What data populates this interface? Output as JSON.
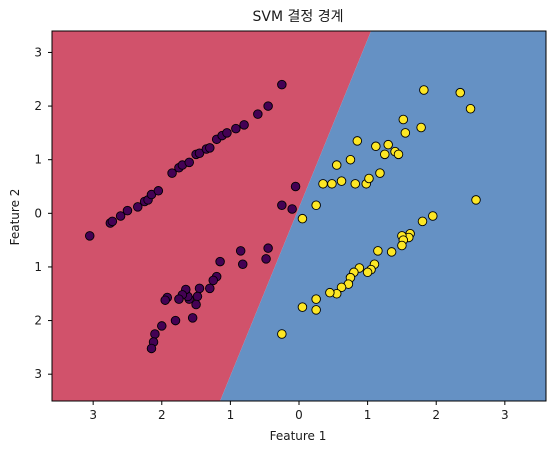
{
  "chart_data": {
    "type": "scatter",
    "title": "SVM 결정 경계",
    "xlabel": "Feature 1",
    "ylabel": "Feature 2",
    "xlim": [
      -3.6,
      3.6
    ],
    "ylim": [
      -3.5,
      3.4
    ],
    "x_ticks": [
      -3,
      -2,
      -1,
      0,
      1,
      2,
      3
    ],
    "y_ticks": [
      -3,
      -2,
      -1,
      0,
      1,
      2,
      3
    ],
    "x_tick_labels": [
      "3",
      "2",
      "1",
      "0",
      "1",
      "2",
      "3"
    ],
    "y_tick_labels": [
      "3",
      "2",
      "1",
      "0",
      "1",
      "2",
      "3"
    ],
    "grid": false,
    "regions": {
      "boundary_top_x": 1.05,
      "boundary_bottom_x": -1.15,
      "left_color": "#d1526b",
      "right_color": "#6591c4"
    },
    "series": [
      {
        "color": "#440154",
        "points": [
          [
            -3.05,
            -0.42
          ],
          [
            -2.75,
            -0.18
          ],
          [
            -2.72,
            -0.15
          ],
          [
            -2.6,
            -0.05
          ],
          [
            -2.5,
            0.05
          ],
          [
            -2.35,
            0.12
          ],
          [
            -2.25,
            0.22
          ],
          [
            -2.2,
            0.25
          ],
          [
            -2.15,
            0.35
          ],
          [
            -2.05,
            0.42
          ],
          [
            -1.85,
            0.75
          ],
          [
            -1.75,
            0.85
          ],
          [
            -1.7,
            0.9
          ],
          [
            -1.6,
            0.95
          ],
          [
            -1.5,
            1.1
          ],
          [
            -1.45,
            1.12
          ],
          [
            -1.35,
            1.2
          ],
          [
            -1.3,
            1.22
          ],
          [
            -1.2,
            1.38
          ],
          [
            -1.12,
            1.45
          ],
          [
            -1.05,
            1.5
          ],
          [
            -0.92,
            1.58
          ],
          [
            -0.8,
            1.65
          ],
          [
            -0.6,
            1.85
          ],
          [
            -0.45,
            2.0
          ],
          [
            -0.25,
            2.4
          ],
          [
            -0.05,
            0.5
          ],
          [
            -0.1,
            0.08
          ],
          [
            -0.25,
            0.15
          ],
          [
            -0.45,
            -0.65
          ],
          [
            -0.48,
            -0.85
          ],
          [
            -0.82,
            -0.95
          ],
          [
            -0.85,
            -0.7
          ],
          [
            -1.15,
            -0.9
          ],
          [
            -1.2,
            -1.18
          ],
          [
            -1.25,
            -1.25
          ],
          [
            -1.3,
            -1.4
          ],
          [
            -1.45,
            -1.4
          ],
          [
            -1.48,
            -1.55
          ],
          [
            -1.5,
            -1.7
          ],
          [
            -1.55,
            -1.95
          ],
          [
            -1.6,
            -1.6
          ],
          [
            -1.62,
            -1.55
          ],
          [
            -1.65,
            -1.42
          ],
          [
            -1.7,
            -1.52
          ],
          [
            -1.75,
            -1.6
          ],
          [
            -1.92,
            -1.57
          ],
          [
            -1.95,
            -1.62
          ],
          [
            -1.8,
            -2.0
          ],
          [
            -2.0,
            -2.1
          ],
          [
            -2.1,
            -2.25
          ],
          [
            -2.12,
            -2.4
          ],
          [
            -2.15,
            -2.52
          ]
        ]
      },
      {
        "color": "#fde725",
        "points": [
          [
            0.62,
            0.6
          ],
          [
            0.35,
            0.55
          ],
          [
            0.48,
            0.55
          ],
          [
            0.55,
            0.9
          ],
          [
            0.75,
            1.0
          ],
          [
            0.82,
            0.55
          ],
          [
            0.85,
            1.35
          ],
          [
            0.98,
            0.55
          ],
          [
            1.02,
            0.65
          ],
          [
            1.12,
            1.25
          ],
          [
            1.18,
            0.75
          ],
          [
            1.25,
            1.1
          ],
          [
            1.3,
            1.28
          ],
          [
            1.4,
            1.15
          ],
          [
            1.45,
            1.1
          ],
          [
            1.52,
            1.75
          ],
          [
            1.55,
            1.5
          ],
          [
            1.78,
            1.6
          ],
          [
            1.82,
            2.3
          ],
          [
            2.35,
            2.25
          ],
          [
            2.5,
            1.95
          ],
          [
            2.58,
            0.25
          ],
          [
            0.25,
            0.15
          ],
          [
            0.05,
            -0.1
          ],
          [
            1.95,
            -0.05
          ],
          [
            1.8,
            -0.15
          ],
          [
            1.62,
            -0.38
          ],
          [
            1.6,
            -0.45
          ],
          [
            1.5,
            -0.42
          ],
          [
            1.52,
            -0.5
          ],
          [
            1.5,
            -0.6
          ],
          [
            1.35,
            -0.72
          ],
          [
            1.15,
            -0.7
          ],
          [
            1.1,
            -0.95
          ],
          [
            1.05,
            -1.05
          ],
          [
            1.0,
            -1.1
          ],
          [
            0.88,
            -1.02
          ],
          [
            0.8,
            -1.1
          ],
          [
            0.75,
            -1.2
          ],
          [
            0.72,
            -1.32
          ],
          [
            0.62,
            -1.38
          ],
          [
            0.55,
            -1.5
          ],
          [
            0.45,
            -1.48
          ],
          [
            0.25,
            -1.6
          ],
          [
            0.05,
            -1.75
          ],
          [
            0.25,
            -1.8
          ],
          [
            -0.25,
            -2.25
          ]
        ]
      }
    ]
  }
}
